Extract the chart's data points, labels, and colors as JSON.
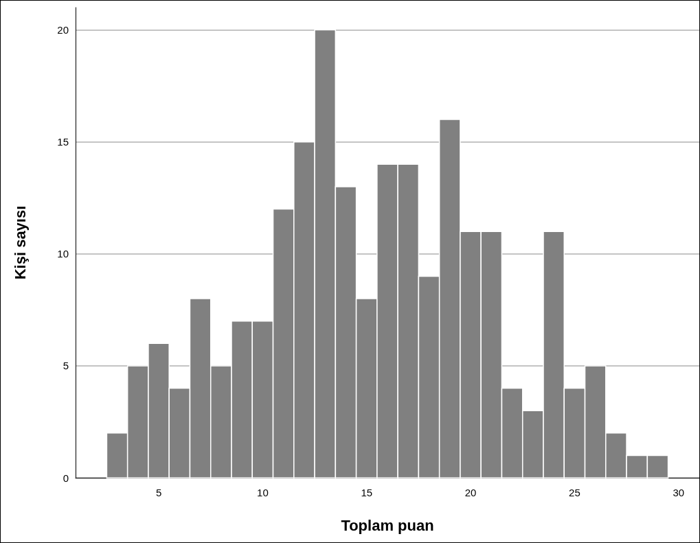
{
  "chart_data": {
    "type": "histogram",
    "xlabel": "Toplam puan",
    "ylabel": "Kişi sayısı",
    "bins": [
      2.5,
      3.5,
      4.5,
      5.5,
      6.5,
      7.5,
      8.5,
      9.5,
      10.5,
      11.5,
      12.5,
      13.5,
      14.5,
      15.5,
      16.5,
      17.5,
      18.5,
      19.5,
      20.5,
      21.5,
      22.5,
      23.5,
      24.5,
      25.5,
      26.5,
      27.5,
      28.5,
      29.5
    ],
    "values": [
      2,
      5,
      6,
      4,
      8,
      5,
      7,
      7,
      12,
      15,
      20,
      13,
      8,
      14,
      14,
      9,
      16,
      11,
      11,
      4,
      3,
      11,
      4,
      5,
      2,
      1,
      1
    ],
    "color": "#808080",
    "xlim": [
      1,
      31
    ],
    "xticks": [
      5,
      10,
      15,
      20,
      25,
      30
    ],
    "ylim": [
      0,
      21
    ],
    "yticks": [
      0,
      5,
      10,
      15,
      20
    ],
    "grid": "y"
  }
}
